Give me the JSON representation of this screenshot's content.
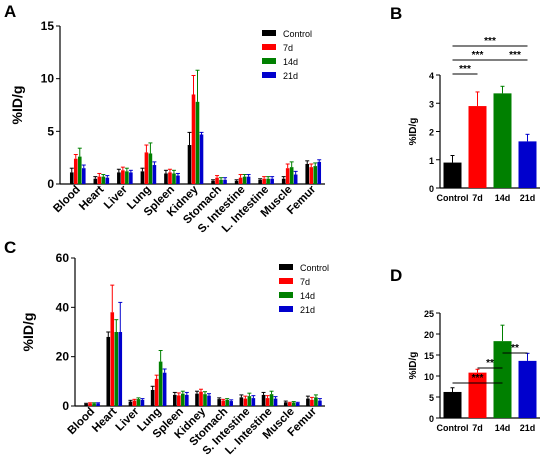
{
  "panels": {
    "a": "A",
    "b": "B",
    "c": "C",
    "d": "D"
  },
  "colors": {
    "control": "#000000",
    "d7": "#ff0000",
    "d14": "#008000",
    "d21": "#0000cd"
  },
  "chart_data": [
    {
      "panel": "A",
      "type": "bar",
      "ylabel": "%ID/g",
      "ylim": [
        0,
        15
      ],
      "yticks": [
        0,
        5,
        10,
        15
      ],
      "categories": [
        "Blood",
        "Heart",
        "Liver",
        "Lung",
        "Spleen",
        "Kidney",
        "Stomach",
        "S. Intestine",
        "L. Intestine",
        "Muscle",
        "Femur"
      ],
      "series": [
        {
          "name": "Control",
          "color": "#000000",
          "values": [
            1.1,
            0.5,
            1.1,
            1.2,
            1.0,
            3.7,
            0.3,
            0.3,
            0.4,
            0.5,
            1.9
          ],
          "errors": [
            0.4,
            0.2,
            0.3,
            0.3,
            0.3,
            1.2,
            0.1,
            0.1,
            0.1,
            0.2,
            0.3
          ]
        },
        {
          "name": "7d",
          "color": "#ff0000",
          "values": [
            2.4,
            0.7,
            1.3,
            3.0,
            1.1,
            8.5,
            0.6,
            0.6,
            0.5,
            1.5,
            1.6
          ],
          "errors": [
            0.4,
            0.3,
            0.3,
            0.7,
            0.3,
            1.8,
            0.2,
            0.3,
            0.2,
            0.4,
            0.3
          ]
        },
        {
          "name": "14d",
          "color": "#008000",
          "values": [
            2.6,
            0.7,
            1.2,
            2.9,
            1.0,
            7.8,
            0.4,
            0.7,
            0.5,
            1.6,
            1.7
          ],
          "errors": [
            0.8,
            0.2,
            0.3,
            1.0,
            0.3,
            3.0,
            0.2,
            0.2,
            0.2,
            0.5,
            0.3
          ]
        },
        {
          "name": "21d",
          "color": "#0000cd",
          "values": [
            1.5,
            0.6,
            1.1,
            1.8,
            0.8,
            4.7,
            0.4,
            0.7,
            0.5,
            0.9,
            2.1
          ],
          "errors": [
            0.3,
            0.2,
            0.2,
            0.3,
            0.2,
            0.2,
            0.2,
            0.2,
            0.2,
            0.3,
            0.2
          ]
        }
      ],
      "legend": [
        "Control",
        "7d",
        "14d",
        "21d"
      ],
      "legend_position": "top-right"
    },
    {
      "panel": "B",
      "type": "bar",
      "ylabel": "%ID/g",
      "ylim": [
        0,
        4
      ],
      "yticks": [
        0,
        1,
        2,
        3,
        4
      ],
      "categories": [
        "Control",
        "7d",
        "14d",
        "21d"
      ],
      "series": [
        {
          "name": "",
          "values": [
            0.9,
            2.9,
            3.35,
            1.65
          ],
          "errors": [
            0.25,
            0.5,
            0.25,
            0.25
          ],
          "colors": [
            "#000000",
            "#ff0000",
            "#008000",
            "#0000cd"
          ]
        }
      ],
      "significance": [
        {
          "from": 0,
          "to": 1,
          "label": "***"
        },
        {
          "from": 0,
          "to": 2,
          "label": "***"
        },
        {
          "from": 0,
          "to": 3,
          "label": "***"
        },
        {
          "from": 2,
          "to": 3,
          "label": "***"
        }
      ]
    },
    {
      "panel": "C",
      "type": "bar",
      "ylabel": "%ID/g",
      "ylim": [
        0,
        60
      ],
      "yticks": [
        0,
        20,
        40,
        60
      ],
      "categories": [
        "Blood",
        "Heart",
        "Liver",
        "Lung",
        "Spleen",
        "Kidney",
        "Stomach",
        "S. Intestine",
        "L. Intestine",
        "Muscle",
        "Femur"
      ],
      "series": [
        {
          "name": "Control",
          "color": "#000000",
          "values": [
            0.8,
            28,
            1.8,
            6.5,
            4.5,
            5.0,
            2.8,
            3.5,
            4.5,
            1.5,
            3.0
          ],
          "errors": [
            0.3,
            2.0,
            0.5,
            1.5,
            1.0,
            1.0,
            0.5,
            1.0,
            1.0,
            0.5,
            1.0
          ]
        },
        {
          "name": "7d",
          "color": "#ff0000",
          "values": [
            1.0,
            38,
            2.2,
            11,
            4.3,
            5.8,
            2.2,
            3.0,
            3.2,
            1.2,
            2.5
          ],
          "errors": [
            0.3,
            11,
            0.5,
            1.5,
            1.0,
            1.0,
            0.5,
            1.0,
            1.0,
            0.3,
            1.0
          ]
        },
        {
          "name": "14d",
          "color": "#008000",
          "values": [
            1.0,
            30,
            2.8,
            18,
            5.0,
            4.8,
            2.5,
            4.0,
            4.8,
            1.4,
            3.5
          ],
          "errors": [
            0.3,
            5.0,
            0.5,
            4.5,
            1.0,
            1.0,
            0.5,
            1.2,
            1.2,
            0.4,
            1.0
          ]
        },
        {
          "name": "21d",
          "color": "#0000cd",
          "values": [
            1.0,
            30,
            2.5,
            13.5,
            4.5,
            4.2,
            2.0,
            3.2,
            3.0,
            1.2,
            2.2
          ],
          "errors": [
            0.3,
            12,
            0.5,
            1.5,
            1.0,
            0.8,
            0.5,
            1.0,
            0.8,
            0.3,
            0.8
          ]
        }
      ],
      "legend": [
        "Control",
        "7d",
        "14d",
        "21d"
      ],
      "legend_position": "top-right"
    },
    {
      "panel": "D",
      "type": "bar",
      "ylabel": "%ID/g",
      "ylim": [
        0,
        25
      ],
      "yticks": [
        0,
        5,
        10,
        15,
        20,
        25
      ],
      "categories": [
        "Control",
        "7d",
        "14d",
        "21d"
      ],
      "series": [
        {
          "name": "",
          "values": [
            6.2,
            10.8,
            18.3,
            13.6
          ],
          "errors": [
            1.0,
            0.8,
            3.8,
            1.8
          ],
          "colors": [
            "#000000",
            "#ff0000",
            "#008000",
            "#0000cd"
          ]
        }
      ],
      "significance": [
        {
          "from": 0,
          "to": 2,
          "label": "***"
        },
        {
          "from": 1,
          "to": 2,
          "label": "**"
        },
        {
          "from": 2,
          "to": 3,
          "label": "**"
        }
      ]
    }
  ]
}
